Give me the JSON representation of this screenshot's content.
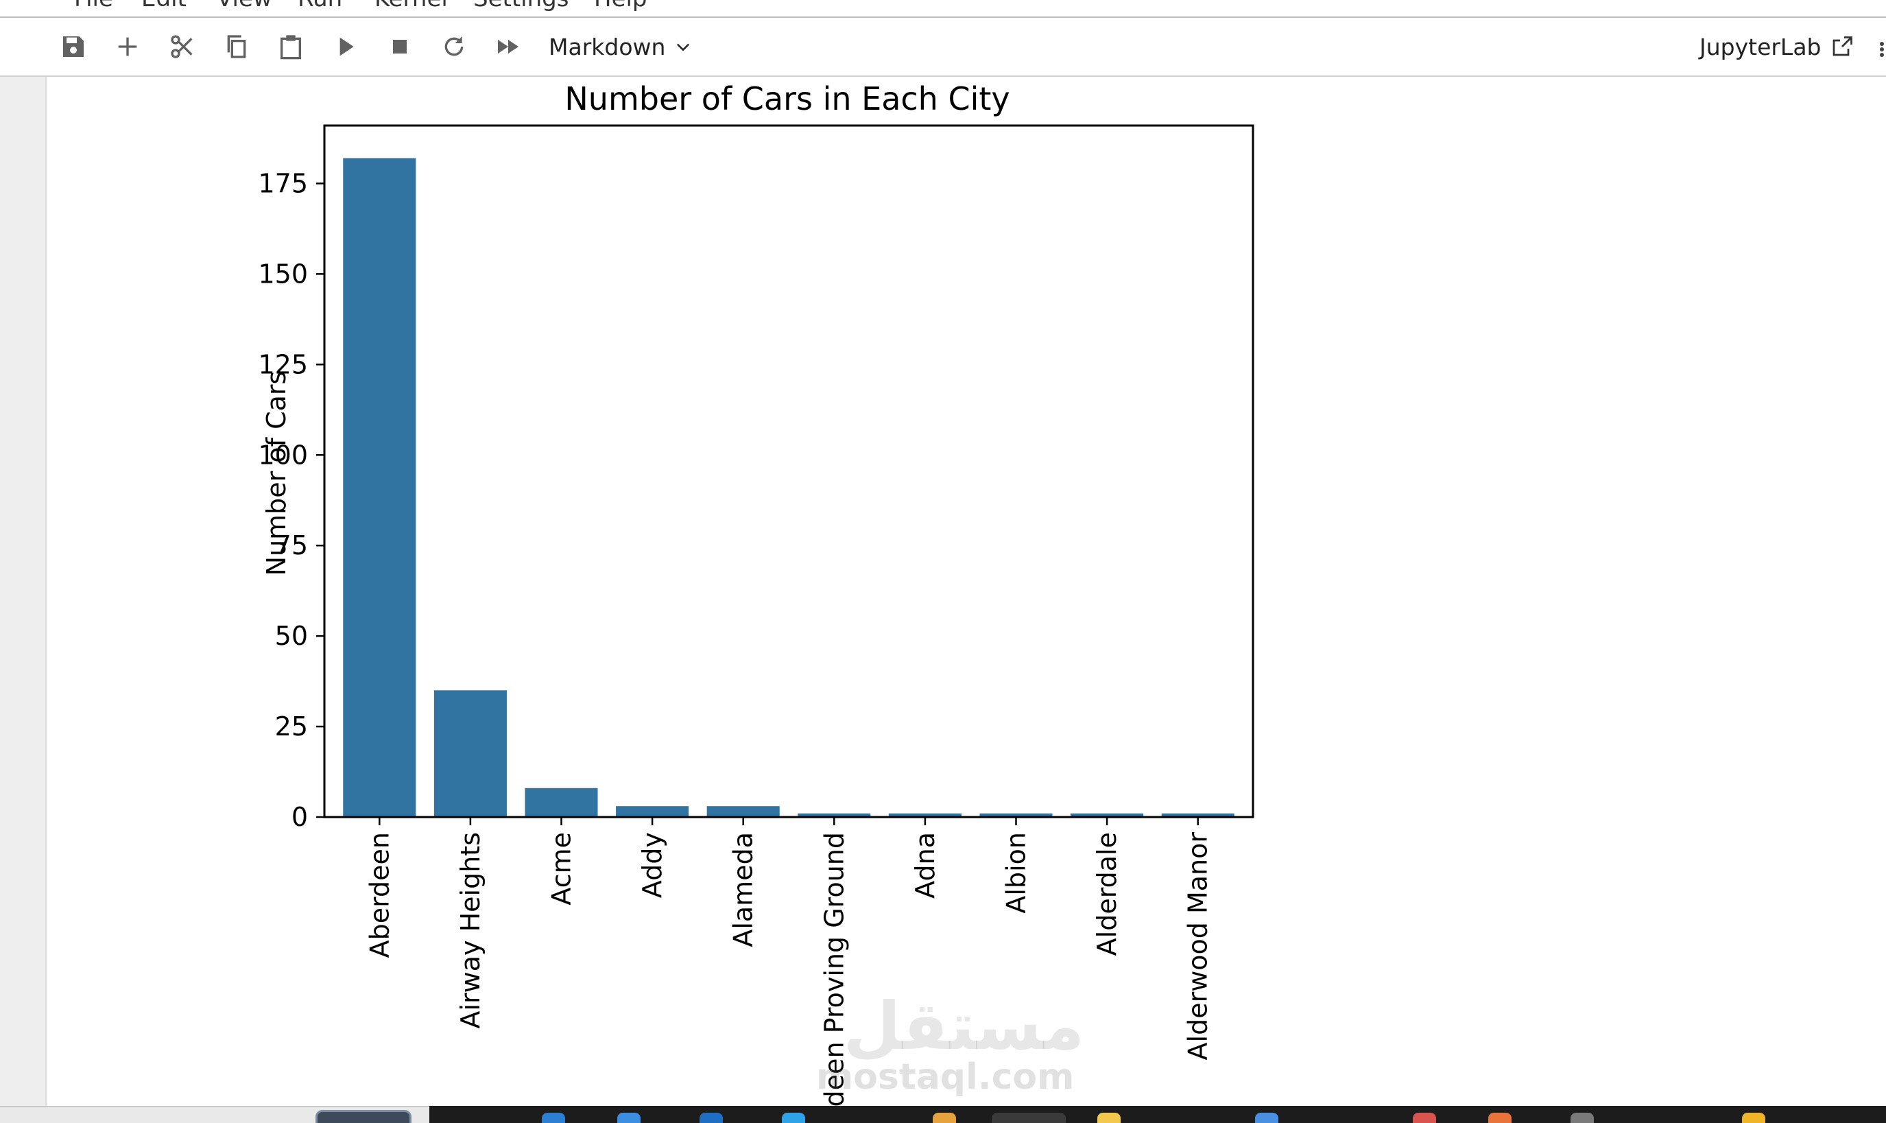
{
  "menubar": {
    "items": [
      "File",
      "Edit",
      "View",
      "Run",
      "Kernel",
      "Settings",
      "Help"
    ]
  },
  "toolbar": {
    "icons": [
      "save-icon",
      "plus-icon",
      "scissors-icon",
      "copy-icon",
      "paste-icon",
      "run-icon",
      "stop-icon",
      "restart-icon",
      "fast-forward-icon"
    ],
    "cell_type": "Markdown",
    "jupyterlab_label": "JupyterLab"
  },
  "watermark": {
    "arabic": "مستقل",
    "latin": "mostaql.com"
  },
  "chart_data": {
    "type": "bar",
    "title": "Number of Cars in Each City",
    "xlabel": "",
    "ylabel": "Number of Cars",
    "categories": [
      "Aberdeen",
      "Airway Heights",
      "Acme",
      "Addy",
      "Alameda",
      "Aberdeen Proving Ground",
      "Adna",
      "Albion",
      "Alderdale",
      "Alderwood Manor"
    ],
    "values": [
      182,
      35,
      8,
      3,
      3,
      1,
      1,
      1,
      1,
      1
    ],
    "yticks": [
      0,
      25,
      50,
      75,
      100,
      125,
      150,
      175
    ],
    "ylim": [
      0,
      191
    ],
    "bar_color": "#3274a1",
    "grid": false,
    "legend": "none"
  }
}
